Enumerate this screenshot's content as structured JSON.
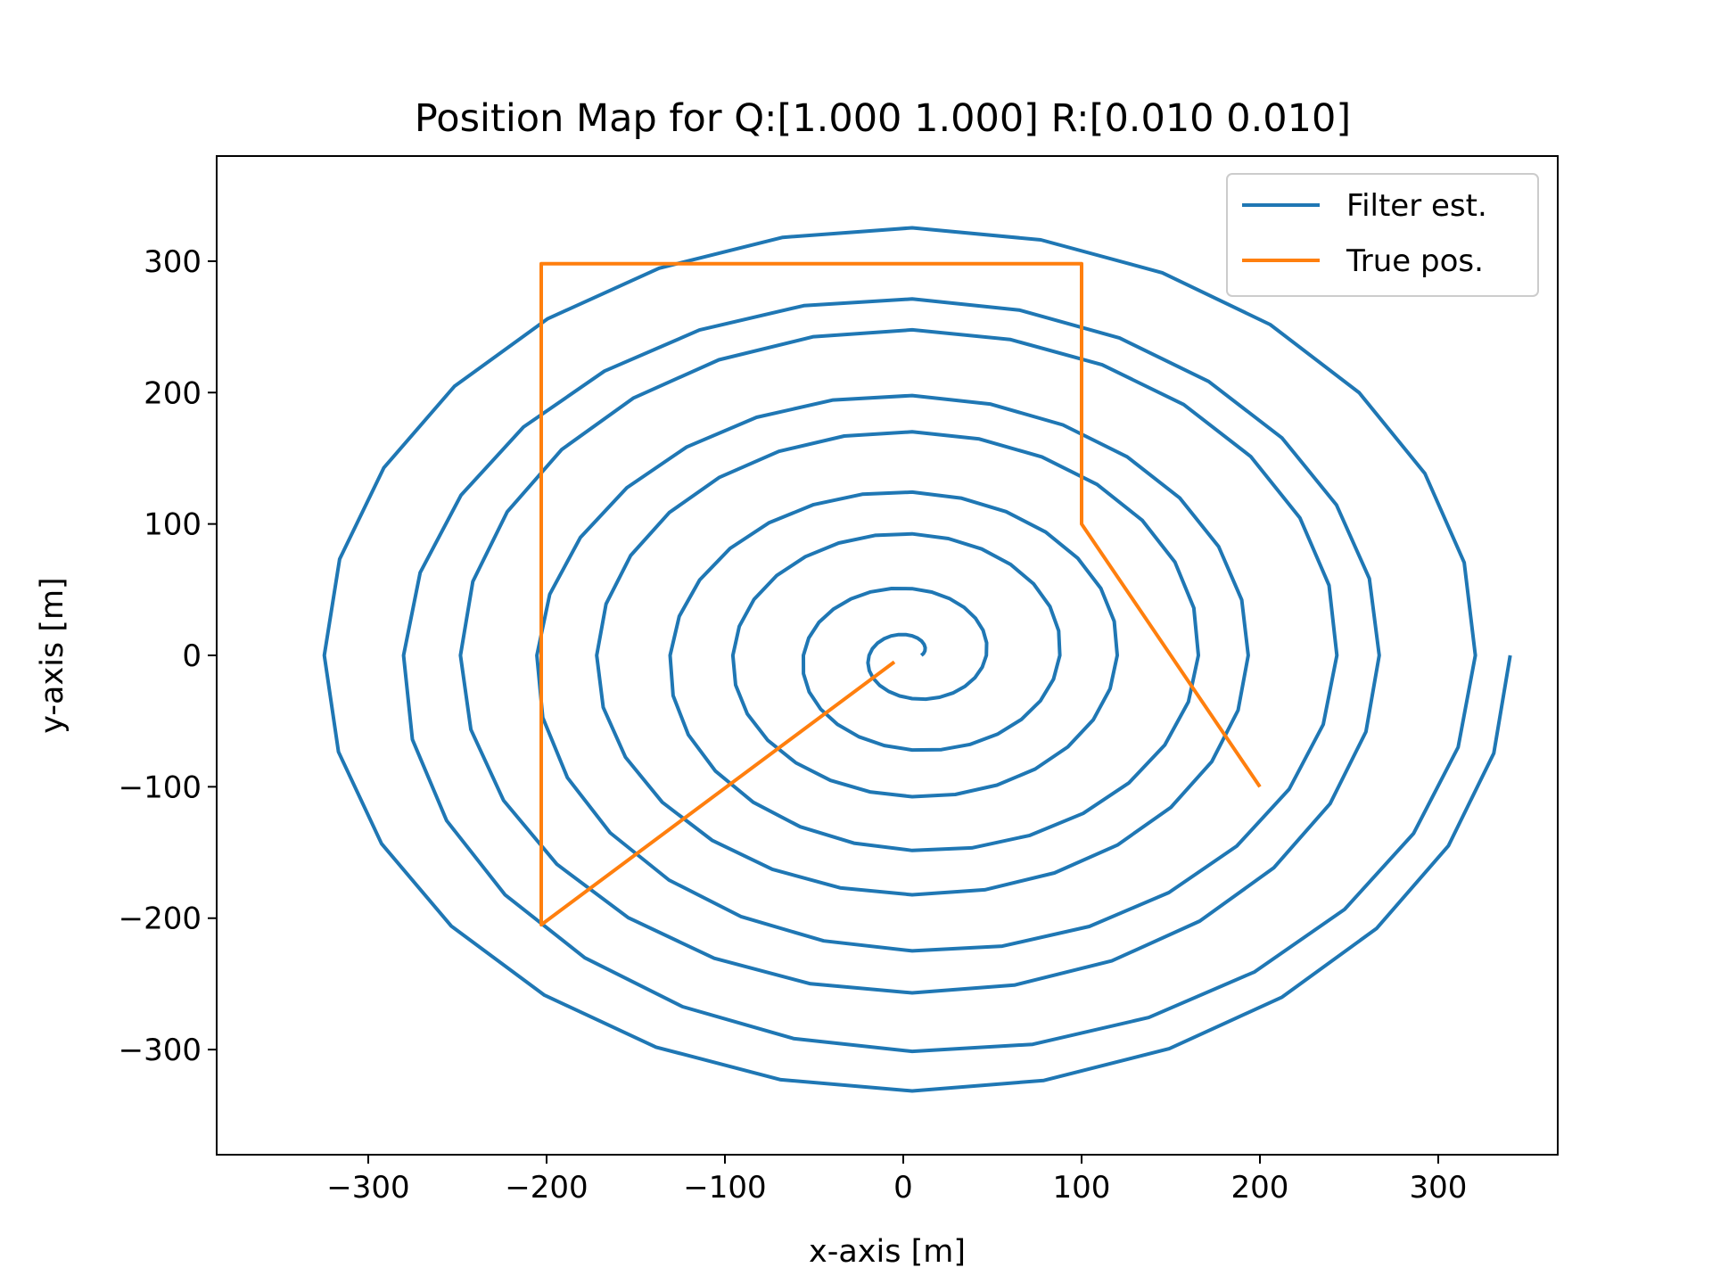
{
  "chart_data": {
    "type": "line",
    "title": "Position Map for Q:[1.000 1.000] R:[0.010 0.010]",
    "xlabel": "x-axis [m]",
    "ylabel": "y-axis [m]",
    "xlim": [
      -385,
      367
    ],
    "ylim": [
      -380,
      380
    ],
    "xticks": [
      -300,
      -200,
      -100,
      0,
      100,
      200,
      300
    ],
    "yticks": [
      -300,
      -200,
      -100,
      0,
      100,
      200,
      300
    ],
    "xtick_labels": [
      "−300",
      "−200",
      "−100",
      "0",
      "100",
      "200",
      "300"
    ],
    "ytick_labels": [
      "−300",
      "−200",
      "−100",
      "0",
      "100",
      "200",
      "300"
    ],
    "grid": false,
    "legend_position": "top-right",
    "series": [
      {
        "name": "Filter est.",
        "color": "#1f77b4",
        "kind": "spiral",
        "center": [
          5,
          0
        ],
        "r_start": 5,
        "r_end": 345,
        "turns": 9,
        "x_scale": 1.0,
        "y_scale": 1.0
      },
      {
        "name": "True pos.",
        "color": "#ff7f0e",
        "kind": "polyline",
        "x": [
          -5,
          -203,
          -203,
          -203,
          100,
          100,
          100,
          200
        ],
        "y": [
          -5,
          -205,
          0,
          298,
          298,
          200,
          100,
          -100
        ]
      }
    ]
  }
}
